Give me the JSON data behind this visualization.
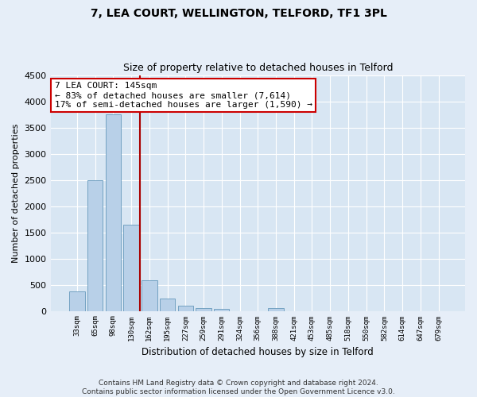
{
  "title": "7, LEA COURT, WELLINGTON, TELFORD, TF1 3PL",
  "subtitle": "Size of property relative to detached houses in Telford",
  "xlabel": "Distribution of detached houses by size in Telford",
  "ylabel": "Number of detached properties",
  "footer_line1": "Contains HM Land Registry data © Crown copyright and database right 2024.",
  "footer_line2": "Contains public sector information licensed under the Open Government Licence v3.0.",
  "bin_labels": [
    "33sqm",
    "65sqm",
    "98sqm",
    "130sqm",
    "162sqm",
    "195sqm",
    "227sqm",
    "259sqm",
    "291sqm",
    "324sqm",
    "356sqm",
    "388sqm",
    "421sqm",
    "453sqm",
    "485sqm",
    "518sqm",
    "550sqm",
    "582sqm",
    "614sqm",
    "647sqm",
    "679sqm"
  ],
  "bar_values": [
    370,
    2500,
    3750,
    1640,
    580,
    230,
    105,
    60,
    35,
    0,
    0,
    50,
    0,
    0,
    0,
    0,
    0,
    0,
    0,
    0,
    0
  ],
  "bar_color": "#b8d0e8",
  "bar_edge_color": "#6699bb",
  "vline_x": 3.5,
  "vline_color": "#aa0000",
  "annotation_text": "7 LEA COURT: 145sqm\n← 83% of detached houses are smaller (7,614)\n17% of semi-detached houses are larger (1,590) →",
  "annotation_box_color": "#ffffff",
  "annotation_box_edge": "#cc0000",
  "ylim": [
    0,
    4500
  ],
  "yticks": [
    0,
    500,
    1000,
    1500,
    2000,
    2500,
    3000,
    3500,
    4000,
    4500
  ],
  "title_fontsize": 10,
  "subtitle_fontsize": 9,
  "bg_color": "#e6eef8",
  "plot_bg_color": "#d8e6f3",
  "grid_color": "#ffffff"
}
